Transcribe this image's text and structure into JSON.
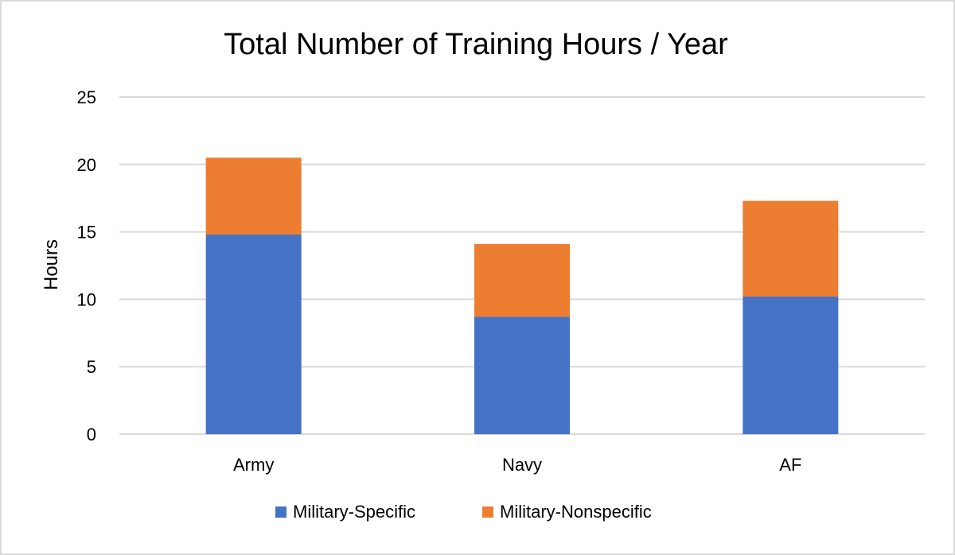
{
  "chart_data": {
    "type": "bar",
    "stacked": true,
    "title": "Total Number of Training Hours / Year",
    "xlabel": "",
    "ylabel": "Hours",
    "categories": [
      "Army",
      "Navy",
      "AF"
    ],
    "series": [
      {
        "name": "Military-Specific",
        "color": "#4472c4",
        "values": [
          14.8,
          8.7,
          10.2
        ]
      },
      {
        "name": "Military-Nonspecific",
        "color": "#ed7d31",
        "values": [
          5.7,
          5.4,
          7.1
        ]
      }
    ],
    "ylim": [
      0,
      25
    ],
    "yticks": [
      0,
      5,
      10,
      15,
      20,
      25
    ],
    "grid": true,
    "legend_position": "bottom",
    "colors": {
      "gridline": "#d9d9d9",
      "axis": "#d9d9d9",
      "border": "#d9d9d9"
    }
  }
}
